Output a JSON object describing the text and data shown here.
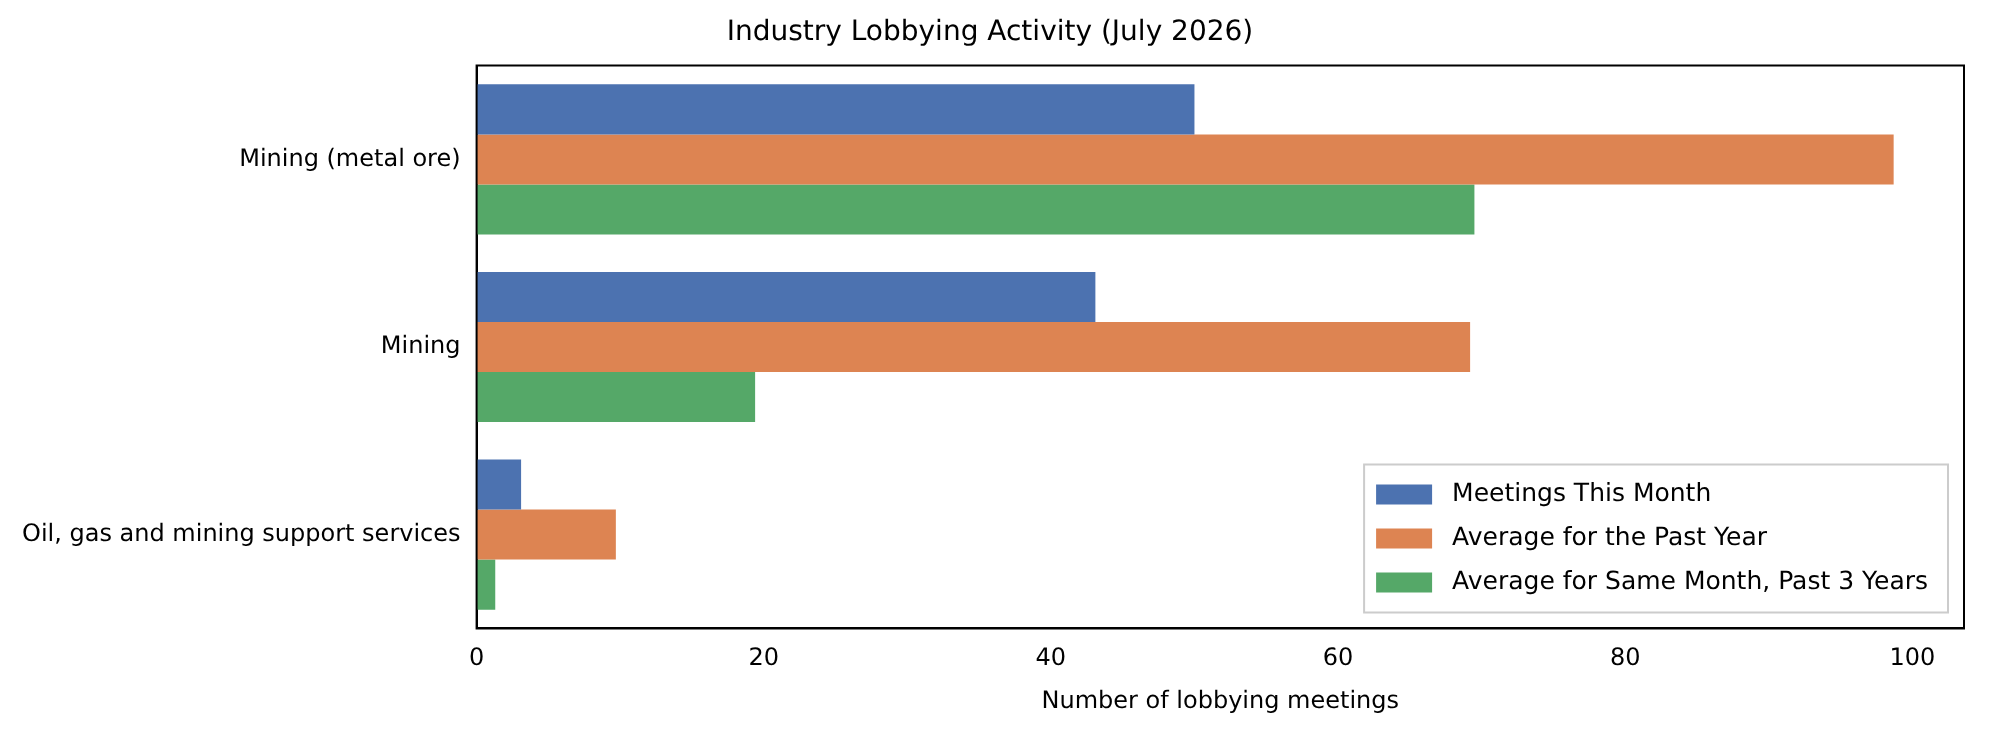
{
  "chart_data": {
    "type": "bar",
    "orientation": "horizontal",
    "title": "Industry Lobbying Activity (July 2026)",
    "xlabel": "Number of lobbying meetings",
    "categories": [
      "Mining (metal ore)",
      "Mining",
      "Oil, gas and mining support services"
    ],
    "series": [
      {
        "name": "Meetings This Month",
        "color": "#4c72b0",
        "values": [
          50,
          43.1,
          3.1
        ]
      },
      {
        "name": "Average for the Past Year",
        "color": "#dd8452",
        "values": [
          98.7,
          69.2,
          9.7
        ]
      },
      {
        "name": "Average for Same Month, Past 3 Years",
        "color": "#55a868",
        "values": [
          69.5,
          19.4,
          1.3
        ]
      }
    ],
    "xlim": [
      0,
      103.6
    ],
    "xticks": [
      0,
      20,
      40,
      60,
      80,
      100
    ],
    "grid": false,
    "legend": "bottom right"
  }
}
